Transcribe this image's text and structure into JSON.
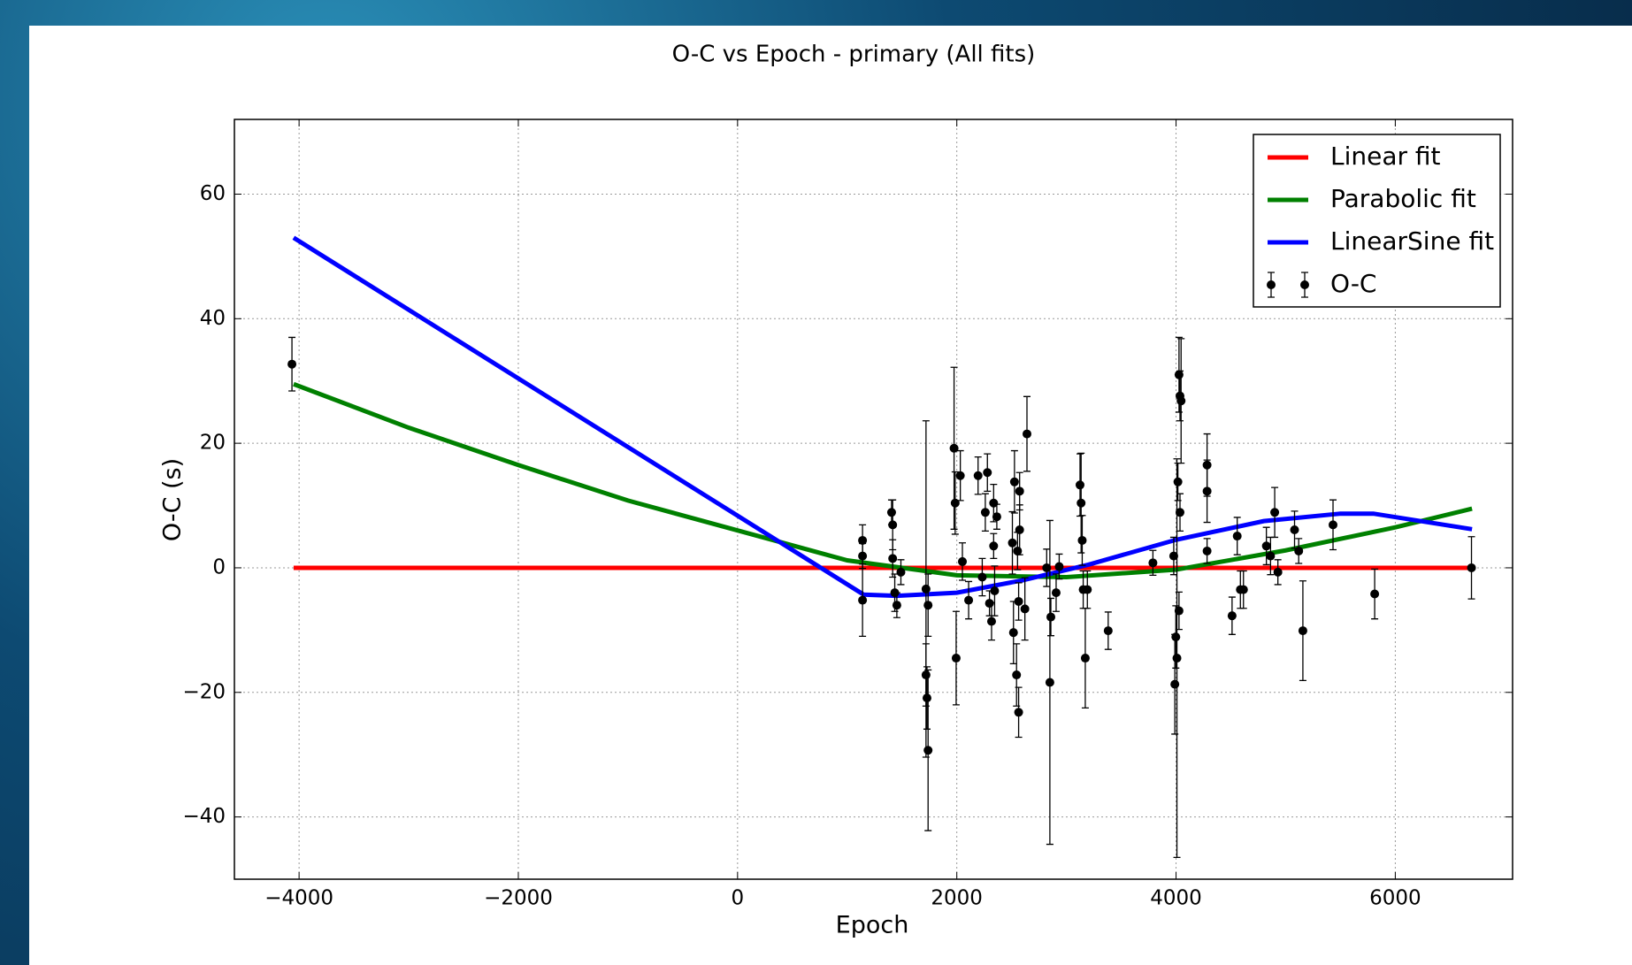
{
  "chart_data": {
    "type": "line",
    "title": "O-C vs Epoch - primary (All fits)",
    "xlabel": "Epoch",
    "ylabel": "O-C (s)",
    "xlim": [
      -4590,
      7070
    ],
    "ylim": [
      -50,
      72
    ],
    "xticks": [
      {
        "value": -4000,
        "label": "−4000"
      },
      {
        "value": -2000,
        "label": "−2000"
      },
      0,
      2000,
      4000,
      6000
    ],
    "yticks": [
      {
        "value": -40,
        "label": "−40"
      },
      {
        "value": -20,
        "label": "−20"
      },
      0,
      20,
      40,
      60
    ],
    "grid": true,
    "legend": "upper right",
    "series": [
      {
        "name": "Linear fit",
        "color": "#ff0000",
        "kind": "line",
        "x": [
          -4050,
          6700
        ],
        "values": [
          0,
          0
        ]
      },
      {
        "name": "Parabolic fit",
        "color": "#008000",
        "kind": "line",
        "x": [
          -4050,
          -3000,
          -2000,
          -1000,
          0,
          1000,
          2000,
          3000,
          4000,
          5000,
          6000,
          6700
        ],
        "values": [
          29.5,
          22.5,
          16.5,
          10.8,
          6,
          1.2,
          -1.2,
          -1.5,
          -0.3,
          2.8,
          6.5,
          9.5
        ]
      },
      {
        "name": "LinearSine fit",
        "color": "#0000ff",
        "kind": "line",
        "x": [
          -4050,
          1150,
          1450,
          2000,
          2600,
          3200,
          4000,
          4800,
          5500,
          5800,
          6700
        ],
        "values": [
          53,
          -4.3,
          -4.5,
          -4,
          -2,
          0.5,
          4.5,
          7.5,
          8.7,
          8.7,
          6.2
        ]
      },
      {
        "name": "O-C",
        "color": "#000000",
        "kind": "errorbar",
        "x": [
          -4065,
          1140,
          1140,
          1140,
          1405,
          1415,
          1415,
          1434,
          1453,
          1490,
          1719,
          1719,
          1728,
          1738,
          1738,
          1975,
          1985,
          2032,
          1994,
          2051,
          2108,
          2194,
          2232,
          2260,
          2279,
          2298,
          2317,
          2336,
          2336,
          2365,
          2345,
          2507,
          2517,
          2526,
          2545,
          2554,
          2564,
          2573,
          2573,
          2564,
          2621,
          2640,
          2820,
          2849,
          2858,
          2906,
          2934,
          3124,
          3134,
          3144,
          3153,
          3172,
          3191,
          3381,
          3789,
          3979,
          3989,
          3998,
          4008,
          4017,
          4027,
          4036,
          4046,
          4036,
          4027,
          4283,
          4283,
          4283,
          4511,
          4558,
          4587,
          4615,
          4824,
          4862,
          4900,
          4929,
          5081,
          5119,
          5157,
          5432,
          5812,
          6695
        ],
        "values": [
          32.7,
          4.4,
          1.9,
          -5.2,
          8.9,
          6.9,
          1.5,
          -4,
          -6,
          -0.7,
          -3.4,
          -17.2,
          -20.9,
          -29.3,
          -6,
          19.2,
          10.4,
          14.8,
          -14.5,
          1,
          -5.2,
          14.8,
          -1.5,
          8.9,
          15.3,
          -5.7,
          -8.6,
          3.5,
          10.4,
          8.2,
          -3.7,
          4,
          -10.4,
          13.8,
          -17.2,
          2.7,
          -5.4,
          12.3,
          6.1,
          -23.2,
          -6.6,
          21.5,
          0,
          -18.4,
          -7.9,
          -4,
          0.2,
          13.3,
          10.4,
          4.4,
          -3.5,
          -14.5,
          -3.5,
          -10.1,
          0.8,
          1.9,
          -18.7,
          -11.1,
          -14.5,
          13.8,
          31,
          27.6,
          26.8,
          8.9,
          -6.9,
          16.5,
          12.3,
          2.7,
          -7.7,
          5.1,
          -3.5,
          -3.5,
          3.5,
          1.9,
          8.9,
          -0.7,
          6.1,
          2.7,
          -10.1,
          6.9,
          -4.2,
          0
        ],
        "errors": [
          4.3,
          2.5,
          2,
          5.8,
          2,
          4,
          3,
          3,
          2,
          2,
          27,
          5,
          5,
          12.9,
          5,
          13,
          5,
          4,
          7.5,
          3,
          3,
          3,
          3,
          3,
          3,
          2,
          3,
          2,
          3,
          2,
          4,
          5,
          5,
          5,
          5,
          3,
          3,
          3,
          4,
          4,
          5,
          6,
          3,
          26,
          3,
          3,
          2,
          5,
          8,
          4,
          3,
          8,
          3,
          3,
          2,
          3,
          8,
          5,
          32,
          3,
          6,
          4,
          10,
          3,
          3,
          5,
          5,
          2,
          3,
          3,
          3,
          3,
          3,
          3,
          4,
          2,
          3,
          2,
          8,
          4,
          4,
          5
        ]
      }
    ]
  }
}
